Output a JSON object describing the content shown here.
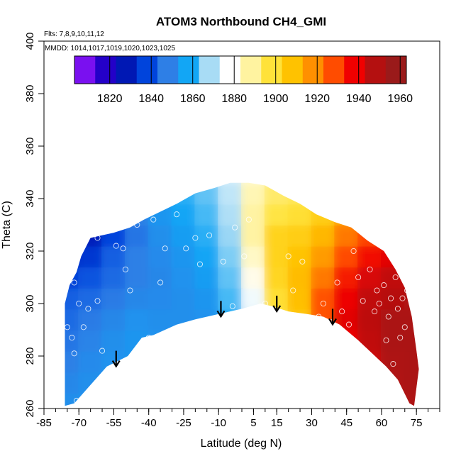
{
  "chart_data": {
    "type": "heatmap",
    "title": "ATOM3 Northbound CH4_GMI",
    "xlabel": "Latitude (deg N)",
    "ylabel": "Theta (C)",
    "xlim": [
      -85,
      85
    ],
    "ylim": [
      260,
      400
    ],
    "x_ticks": [
      -85,
      -70,
      -55,
      -40,
      -25,
      -10,
      5,
      15,
      30,
      45,
      60,
      75
    ],
    "x_minor_step": 5,
    "y_ticks": [
      260,
      280,
      300,
      320,
      340,
      360,
      380,
      400
    ],
    "annotations": {
      "flights": "Flts: 7,8,9,10,11,12",
      "dates": "MMDD: 1014,1017,1019,1020,1023,1025"
    },
    "colorbar": {
      "range": [
        1803,
        1963
      ],
      "tick_values": [
        1820,
        1840,
        1860,
        1880,
        1900,
        1920,
        1940,
        1960
      ],
      "colors": [
        "#7a10f0",
        "#2400c8",
        "#0018b4",
        "#0044dc",
        "#2e7fe6",
        "#12a6f5",
        "#a8dcf5",
        "#ffffff",
        "#fff3a0",
        "#ffe23a",
        "#ffc200",
        "#ff9000",
        "#ff4c00",
        "#f00000",
        "#b41010",
        "#9a1a1a"
      ]
    },
    "upper_boundary": [
      [
        -76,
        300
      ],
      [
        -74,
        307
      ],
      [
        -71,
        312
      ],
      [
        -69,
        318
      ],
      [
        -65,
        325
      ],
      [
        -60,
        326
      ],
      [
        -55,
        327
      ],
      [
        -48,
        329
      ],
      [
        -42,
        332
      ],
      [
        -35,
        335
      ],
      [
        -28,
        338
      ],
      [
        -20,
        342
      ],
      [
        -12,
        344
      ],
      [
        -5,
        346
      ],
      [
        3,
        346
      ],
      [
        10,
        345
      ],
      [
        18,
        341
      ],
      [
        25,
        338
      ],
      [
        32,
        334
      ],
      [
        40,
        331
      ],
      [
        47,
        329
      ],
      [
        54,
        324
      ],
      [
        61,
        320
      ],
      [
        66,
        313
      ],
      [
        70,
        306
      ],
      [
        73,
        295
      ],
      [
        75,
        282
      ],
      [
        76,
        275
      ]
    ],
    "lower_boundary": [
      [
        -76,
        261
      ],
      [
        -72,
        262
      ],
      [
        -64,
        270
      ],
      [
        -58,
        276
      ],
      [
        -49,
        280
      ],
      [
        -43,
        287
      ],
      [
        -38,
        288
      ],
      [
        -28,
        292
      ],
      [
        -20,
        294
      ],
      [
        -10,
        296
      ],
      [
        0,
        298
      ],
      [
        8,
        300
      ],
      [
        13,
        299
      ],
      [
        20,
        297
      ],
      [
        28,
        296
      ],
      [
        35,
        295
      ],
      [
        42,
        292
      ],
      [
        50,
        286
      ],
      [
        56,
        281
      ],
      [
        62,
        276
      ],
      [
        67,
        271
      ],
      [
        72,
        262
      ],
      [
        74,
        261
      ]
    ],
    "grid_cells": {
      "latitudes": [
        -75,
        -65,
        -55,
        -45,
        -35,
        -25,
        -15,
        -5,
        5,
        15,
        25,
        35,
        45,
        55,
        65,
        75
      ],
      "thetas": [
        262,
        270,
        278,
        286,
        294,
        302,
        310,
        318,
        326,
        334,
        342
      ],
      "ch4": [
        [
          1850,
          1851,
          1852,
          1853,
          1852,
          1850,
          1849,
          1855,
          1862,
          1884,
          1900,
          1918,
          1933,
          1945,
          1952,
          1955
        ],
        [
          1848,
          1850,
          1852,
          1853,
          1852,
          1850,
          1849,
          1856,
          1864,
          1888,
          1902,
          1920,
          1935,
          1947,
          1954,
          1956
        ],
        [
          1846,
          1849,
          1851,
          1852,
          1852,
          1850,
          1850,
          1856,
          1866,
          1890,
          1904,
          1922,
          1938,
          1948,
          1955,
          1956
        ],
        [
          1844,
          1847,
          1850,
          1852,
          1851,
          1850,
          1850,
          1857,
          1868,
          1893,
          1906,
          1926,
          1942,
          1950,
          1956,
          1956
        ],
        [
          1842,
          1845,
          1848,
          1851,
          1850,
          1850,
          1851,
          1858,
          1872,
          1898,
          1908,
          1930,
          1944,
          1951,
          1956,
          1956
        ],
        [
          1840,
          1842,
          1845,
          1848,
          1849,
          1850,
          1852,
          1860,
          1876,
          1900,
          1910,
          1930,
          1942,
          1950,
          1952,
          1954
        ],
        [
          1834,
          1838,
          1842,
          1846,
          1848,
          1851,
          1854,
          1862,
          1880,
          1903,
          1911,
          1924,
          1938,
          1946,
          1950,
          1950
        ],
        [
          1828,
          1832,
          1840,
          1846,
          1849,
          1852,
          1856,
          1864,
          1884,
          1904,
          1909,
          1918,
          1931,
          1940,
          1944,
          1944
        ],
        [
          1824,
          1826,
          1835,
          1844,
          1850,
          1854,
          1858,
          1866,
          1888,
          1904,
          1906,
          1912,
          1924,
          1932,
          1936,
          1936
        ],
        [
          1830,
          1832,
          1838,
          1846,
          1852,
          1856,
          1860,
          1868,
          1888,
          1898,
          1900,
          1906,
          1916,
          1924,
          1928,
          1928
        ],
        [
          1840,
          1842,
          1846,
          1850,
          1854,
          1858,
          1862,
          1870,
          1886,
          1894,
          1896,
          1900,
          1908,
          1914,
          1916,
          1916
        ]
      ]
    },
    "arrows": [
      [
        -54,
        282
      ],
      [
        -9,
        301
      ],
      [
        15,
        303
      ],
      [
        39,
        298
      ]
    ],
    "sample_points": [
      [
        -72,
        308
      ],
      [
        -70,
        300
      ],
      [
        -68,
        291
      ],
      [
        -62,
        301
      ],
      [
        -60,
        282
      ],
      [
        -58,
        270
      ],
      [
        -62,
        325
      ],
      [
        -54,
        322
      ],
      [
        -51,
        321
      ],
      [
        -50,
        313
      ],
      [
        -48,
        305
      ],
      [
        -45,
        330
      ],
      [
        -40,
        287
      ],
      [
        -38,
        332
      ],
      [
        -35,
        308
      ],
      [
        -33,
        321
      ],
      [
        -28,
        334
      ],
      [
        -24,
        321
      ],
      [
        -22,
        292
      ],
      [
        -20,
        325
      ],
      [
        -18,
        315
      ],
      [
        -14,
        326
      ],
      [
        -8,
        316
      ],
      [
        -4,
        299
      ],
      [
        -3,
        329
      ],
      [
        3,
        332
      ],
      [
        1,
        318
      ],
      [
        -75,
        291
      ],
      [
        -73,
        287
      ],
      [
        -72,
        281
      ],
      [
        -71,
        263
      ],
      [
        -66,
        298
      ],
      [
        10,
        300
      ],
      [
        17,
        293
      ],
      [
        20,
        318
      ],
      [
        22,
        305
      ],
      [
        26,
        316
      ],
      [
        33,
        295
      ],
      [
        35,
        300
      ],
      [
        38,
        293
      ],
      [
        41,
        308
      ],
      [
        43,
        297
      ],
      [
        46,
        292
      ],
      [
        48,
        320
      ],
      [
        50,
        310
      ],
      [
        52,
        301
      ],
      [
        53,
        282
      ],
      [
        55,
        313
      ],
      [
        57,
        297
      ],
      [
        58,
        305
      ],
      [
        59,
        300
      ],
      [
        61,
        307
      ],
      [
        62,
        286
      ],
      [
        63,
        295
      ],
      [
        64,
        302
      ],
      [
        65,
        277
      ],
      [
        66,
        310
      ],
      [
        67,
        298
      ],
      [
        68,
        287
      ],
      [
        69,
        302
      ],
      [
        70,
        291
      ],
      [
        71,
        305
      ]
    ]
  }
}
